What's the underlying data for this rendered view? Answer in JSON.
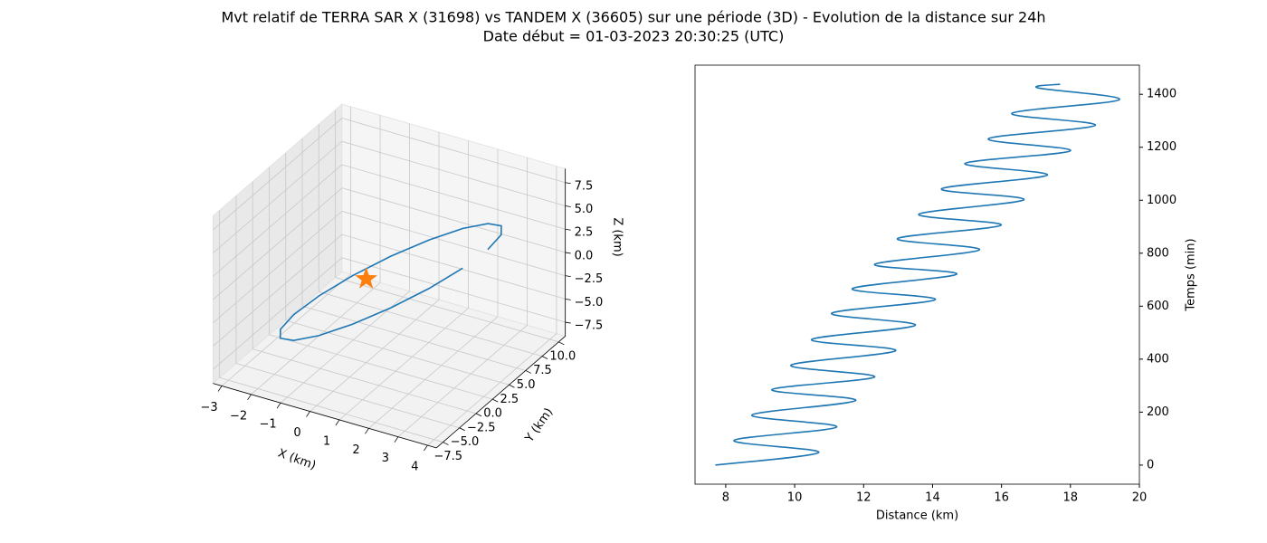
{
  "title": "Mvt relatif de TERRA SAR X (31698) vs TANDEM X (36605) sur une période (3D) - Evolution de la distance sur 24h",
  "subtitle": "Date début = 01-03-2023 20:30:25 (UTC)",
  "chart_data": [
    {
      "type": "line3d",
      "x_label": "X (km)",
      "y_label": "Y (km)",
      "z_label": "Z (km)",
      "xlim": [
        -3.3,
        4.3
      ],
      "ylim": [
        -8.5,
        11
      ],
      "zlim": [
        -9,
        9
      ],
      "xticks": [
        {
          "value": -3,
          "label": "−3"
        },
        {
          "value": -2,
          "label": "−2"
        },
        {
          "value": -1,
          "label": "−1"
        },
        0,
        1,
        2,
        3,
        4
      ],
      "yticks": [
        {
          "value": -7.5,
          "label": "−7.5"
        },
        {
          "value": -5,
          "label": "−5.0"
        },
        {
          "value": -2.5,
          "label": "−2.5"
        },
        {
          "value": 0,
          "label": "0.0"
        },
        2.5,
        {
          "value": 5,
          "label": "5.0"
        },
        7.5,
        {
          "value": 10,
          "label": "10.0"
        }
      ],
      "zticks": [
        {
          "value": -7.5,
          "label": "−7.5"
        },
        {
          "value": -5,
          "label": "−5.0"
        },
        {
          "value": -2.5,
          "label": "−2.5"
        },
        {
          "value": 0,
          "label": "0.0"
        },
        2.5,
        {
          "value": 5,
          "label": "5.0"
        },
        7.5
      ],
      "series": [
        {
          "color": "#1f77b4",
          "x": [
            3.8,
            3.6,
            3.03,
            2.15,
            1.07,
            -0.07,
            -1.15,
            -2.03,
            -2.6,
            -2.8,
            -2.6,
            -2.03,
            -1.15,
            -0.07,
            1.07,
            2.15,
            3.03,
            3.6
          ],
          "y": [
            1.5,
            4.41,
            6.97,
            8.86,
            9.87,
            9.87,
            8.86,
            6.97,
            4.41,
            1.5,
            -1.41,
            -3.97,
            -5.86,
            -6.87,
            -6.87,
            -5.86,
            -3.97,
            -1.41
          ],
          "z": [
            5.7,
            5.31,
            4.18,
            2.45,
            0.33,
            -1.93,
            -4.05,
            -5.78,
            -6.91,
            -7.3,
            -6.91,
            -5.78,
            -4.05,
            -1.93,
            0.33,
            2.45,
            4.18,
            5.31
          ]
        }
      ],
      "points": [
        {
          "marker": "star",
          "color": "#ff7f0e",
          "x": 0,
          "y": 0,
          "z": 0
        }
      ]
    },
    {
      "type": "line",
      "x_label": "Distance (km)",
      "y_label": "Temps (min)",
      "y_axis_side": "right",
      "xlim": [
        7.11,
        20.0
      ],
      "ylim": [
        -72,
        1510
      ],
      "xticks": [
        8,
        10,
        12,
        14,
        16,
        18,
        20
      ],
      "yticks": [
        0,
        200,
        400,
        600,
        800,
        1000,
        1200,
        1400
      ],
      "series": [
        {
          "color": "#1f77b4",
          "x": [
            7.7,
            10.7,
            8.24,
            11.22,
            8.76,
            11.77,
            9.34,
            12.32,
            9.89,
            12.93,
            10.49,
            13.5,
            11.07,
            14.08,
            11.67,
            14.7,
            12.32,
            15.36,
            12.98,
            15.99,
            13.6,
            16.65,
            14.26,
            17.33,
            14.94,
            18.0,
            15.62,
            18.72,
            16.3,
            19.42,
            17.06,
            17.7
          ],
          "values": [
            0,
            48,
            93,
            144,
            189,
            244,
            285,
            333,
            377,
            432,
            474,
            528,
            573,
            625,
            666,
            721,
            758,
            813,
            855,
            906,
            947,
            1002,
            1043,
            1095,
            1139,
            1187,
            1232,
            1283,
            1328,
            1380,
            1424,
            1438
          ]
        }
      ]
    }
  ]
}
